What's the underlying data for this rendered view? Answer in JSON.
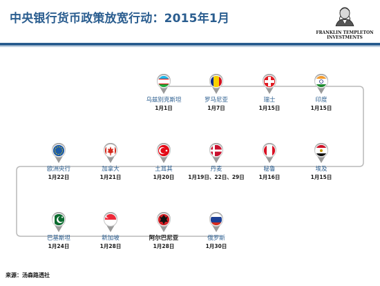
{
  "title": "中央银行货币政策放宽行动：2015年1月",
  "logo": {
    "line1": "FRANKLIN TEMPLETON",
    "line2": "INVESTMENTS"
  },
  "source": "来源：汤森路透社",
  "events": [
    {
      "country": "乌兹别克斯坦",
      "date": "1月1日",
      "flag": "uzbekistan"
    },
    {
      "country": "罗马尼亚",
      "date": "1月7日",
      "flag": "romania"
    },
    {
      "country": "瑞士",
      "date": "1月15日",
      "flag": "switzerland"
    },
    {
      "country": "印度",
      "date": "1月15日",
      "flag": "india"
    },
    {
      "country": "埃及",
      "date": "1月15日",
      "flag": "egypt"
    },
    {
      "country": "秘鲁",
      "date": "1月16日",
      "flag": "peru"
    },
    {
      "country": "丹麦",
      "date": "1月19日、22日、29日",
      "flag": "denmark"
    },
    {
      "country": "土耳其",
      "date": "1月20日",
      "flag": "turkey"
    },
    {
      "country": "加拿大",
      "date": "1月21日",
      "flag": "canada"
    },
    {
      "country": "欧洲央行",
      "date": "1月22日",
      "flag": "eu"
    },
    {
      "country": "巴基斯坦",
      "date": "1月24日",
      "flag": "pakistan"
    },
    {
      "country": "新加坡",
      "date": "1月28日",
      "flag": "singapore"
    },
    {
      "country": "阿尔巴尼亚",
      "date": "1月28日",
      "flag": "albania"
    },
    {
      "country": "俄罗斯",
      "date": "1月30日",
      "flag": "russia"
    }
  ]
}
